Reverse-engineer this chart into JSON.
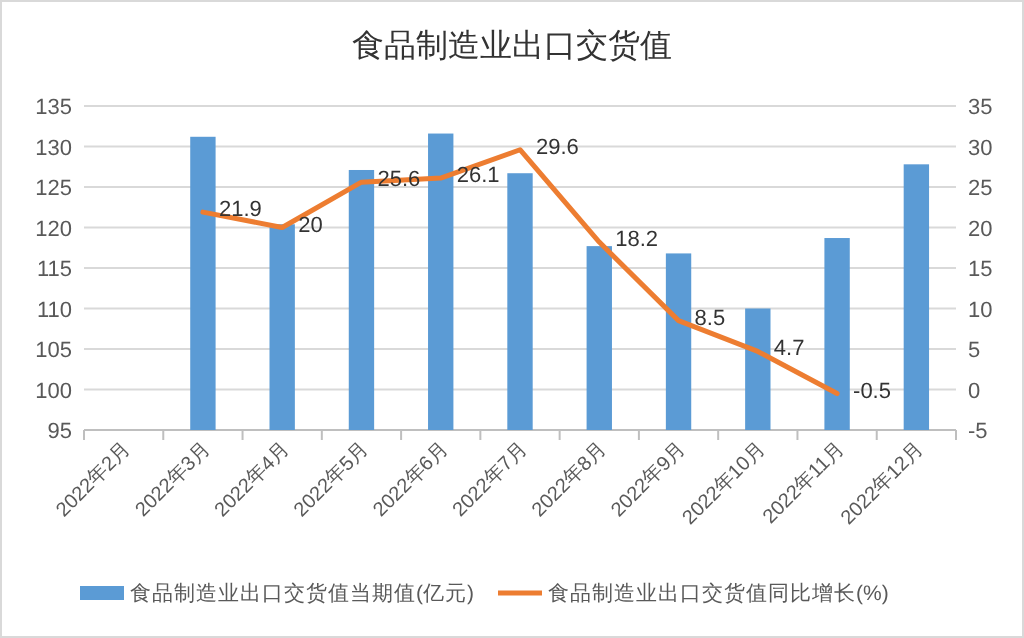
{
  "chart_data": {
    "type": "bar",
    "title": "食品制造业出口交货值",
    "categories": [
      "2022年2月",
      "2022年3月",
      "2022年4月",
      "2022年5月",
      "2022年6月",
      "2022年7月",
      "2022年8月",
      "2022年9月",
      "2022年10月",
      "2022年11月",
      "2022年12月"
    ],
    "series": [
      {
        "name": "食品制造业出口交货值当期值(亿元)",
        "color": "#5b9bd5",
        "values": [
          null,
          131.2,
          120.4,
          127.1,
          131.6,
          126.7,
          117.7,
          116.8,
          110.0,
          118.7,
          127.8
        ]
      },
      {
        "name": "食品制造业出口交货值同比增长(%)",
        "color": "#ed7d31",
        "type": "line",
        "axis": "y2",
        "values": [
          null,
          21.9,
          20,
          25.6,
          26.1,
          29.6,
          18.2,
          8.5,
          4.7,
          -0.5,
          null
        ],
        "value_labels": [
          null,
          "21.9",
          "20",
          "25.6",
          "26.1",
          "29.6",
          "18.2",
          "8.5",
          "4.7",
          "-0.5",
          null
        ]
      }
    ],
    "ylim": [
      95,
      135
    ],
    "yticks": [
      95,
      100,
      105,
      110,
      115,
      120,
      125,
      130,
      135
    ],
    "y2lim": [
      -5,
      35
    ],
    "y2ticks": [
      -5,
      0,
      5,
      10,
      15,
      20,
      25,
      30,
      35
    ],
    "grid": "y",
    "legend": "bottom",
    "marker": "none"
  }
}
